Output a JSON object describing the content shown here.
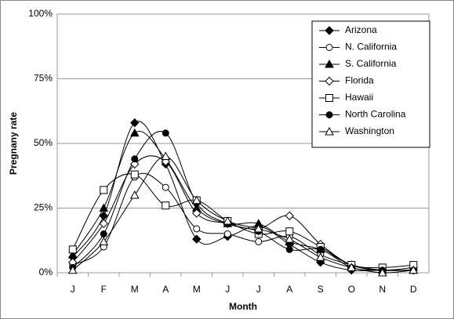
{
  "chart_data": {
    "type": "line",
    "smooth": true,
    "x_label": "Month",
    "y_label": "Pregnany rate",
    "categories": [
      "J",
      "F",
      "M",
      "A",
      "M",
      "J",
      "J",
      "A",
      "S",
      "O",
      "N",
      "D"
    ],
    "ylim": [
      0,
      100
    ],
    "yticks": [
      {
        "value": 0,
        "label": "0%"
      },
      {
        "value": 25,
        "label": "25%"
      },
      {
        "value": 50,
        "label": "50%"
      },
      {
        "value": 75,
        "label": "75%"
      },
      {
        "value": 100,
        "label": "100%"
      }
    ],
    "grid": true,
    "legend": "upper right",
    "series": [
      {
        "name": "Arizona",
        "color": "#000000",
        "marker": "diamond",
        "filled": true,
        "values": [
          6,
          22,
          58,
          42,
          13,
          14,
          18,
          11,
          4,
          1,
          1,
          1
        ]
      },
      {
        "name": "N. California",
        "color": "#000000",
        "marker": "circle",
        "filled": false,
        "values": [
          3,
          10,
          37,
          33,
          17,
          15,
          12,
          14,
          7,
          3,
          1,
          1
        ]
      },
      {
        "name": "S. California",
        "color": "#000000",
        "marker": "triangle",
        "filled": true,
        "values": [
          7,
          25,
          54,
          44,
          25,
          19,
          19,
          12,
          9,
          3,
          1,
          1
        ]
      },
      {
        "name": "Florida",
        "color": "#000000",
        "marker": "diamond",
        "filled": false,
        "values": [
          4,
          19,
          42,
          43,
          23,
          19,
          17,
          22,
          11,
          3,
          1,
          2
        ]
      },
      {
        "name": "Hawaii",
        "color": "#000000",
        "marker": "square",
        "filled": false,
        "values": [
          9,
          32,
          38,
          26,
          28,
          20,
          15,
          16,
          10,
          3,
          2,
          3
        ]
      },
      {
        "name": "North Carolina",
        "color": "#000000",
        "marker": "circle",
        "filled": true,
        "values": [
          2,
          15,
          44,
          54,
          27,
          19,
          16,
          9,
          9,
          2,
          1,
          1
        ]
      },
      {
        "name": "Washington",
        "color": "#000000",
        "marker": "triangle",
        "filled": false,
        "values": [
          1,
          12,
          30,
          45,
          28,
          20,
          17,
          13,
          6,
          2,
          0,
          1
        ]
      }
    ]
  }
}
